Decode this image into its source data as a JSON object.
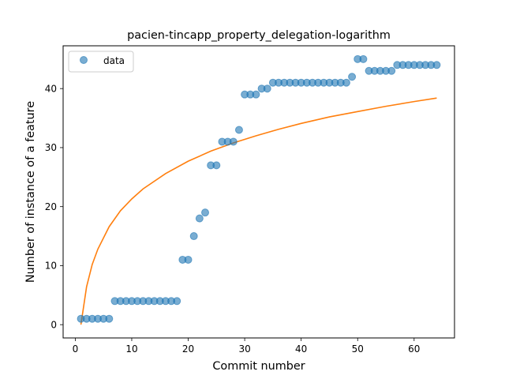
{
  "chart_data": {
    "type": "scatter",
    "title": "pacien-tincapp_property_delegation-logarithm",
    "xlabel": "Commit number",
    "ylabel": "Number of instance of a feature",
    "xlim": [
      -2.15,
      67.15
    ],
    "ylim": [
      -2.25,
      47.25
    ],
    "xticks": [
      0,
      10,
      20,
      30,
      40,
      50,
      60
    ],
    "yticks": [
      0,
      10,
      20,
      30,
      40
    ],
    "grid": false,
    "legend_position": "top-left",
    "series": [
      {
        "name": "data",
        "kind": "scatter",
        "color": "#1f77b4",
        "x": [
          1,
          2,
          3,
          4,
          5,
          6,
          7,
          8,
          9,
          10,
          11,
          12,
          13,
          14,
          15,
          16,
          17,
          18,
          19,
          20,
          21,
          22,
          23,
          24,
          25,
          26,
          27,
          28,
          29,
          30,
          31,
          32,
          33,
          34,
          35,
          36,
          37,
          38,
          39,
          40,
          41,
          42,
          43,
          44,
          45,
          46,
          47,
          48,
          49,
          50,
          51,
          52,
          53,
          54,
          55,
          56,
          57,
          58,
          59,
          60,
          61,
          62,
          63,
          64
        ],
        "y": [
          1,
          1,
          1,
          1,
          1,
          1,
          4,
          4,
          4,
          4,
          4,
          4,
          4,
          4,
          4,
          4,
          4,
          4,
          11,
          11,
          15,
          18,
          19,
          27,
          27,
          31,
          31,
          31,
          33,
          39,
          39,
          39,
          40,
          40,
          41,
          41,
          41,
          41,
          41,
          41,
          41,
          41,
          41,
          41,
          41,
          41,
          41,
          41,
          42,
          45,
          45,
          43,
          43,
          43,
          43,
          43,
          44,
          44,
          44,
          44,
          44,
          44,
          44,
          44
        ]
      },
      {
        "name": "",
        "kind": "line",
        "color": "#ff7f0e",
        "function": "logarithmic fit",
        "x": [
          1,
          2,
          3,
          4,
          6,
          8,
          10,
          12,
          16,
          20,
          24,
          28,
          32,
          36,
          40,
          45,
          50,
          55,
          60,
          64
        ],
        "y": [
          0.0,
          6.4,
          10.2,
          12.8,
          16.6,
          19.3,
          21.3,
          23.0,
          25.6,
          27.7,
          29.4,
          30.8,
          32.0,
          33.1,
          34.1,
          35.2,
          36.1,
          37.0,
          37.8,
          38.4
        ]
      }
    ]
  }
}
